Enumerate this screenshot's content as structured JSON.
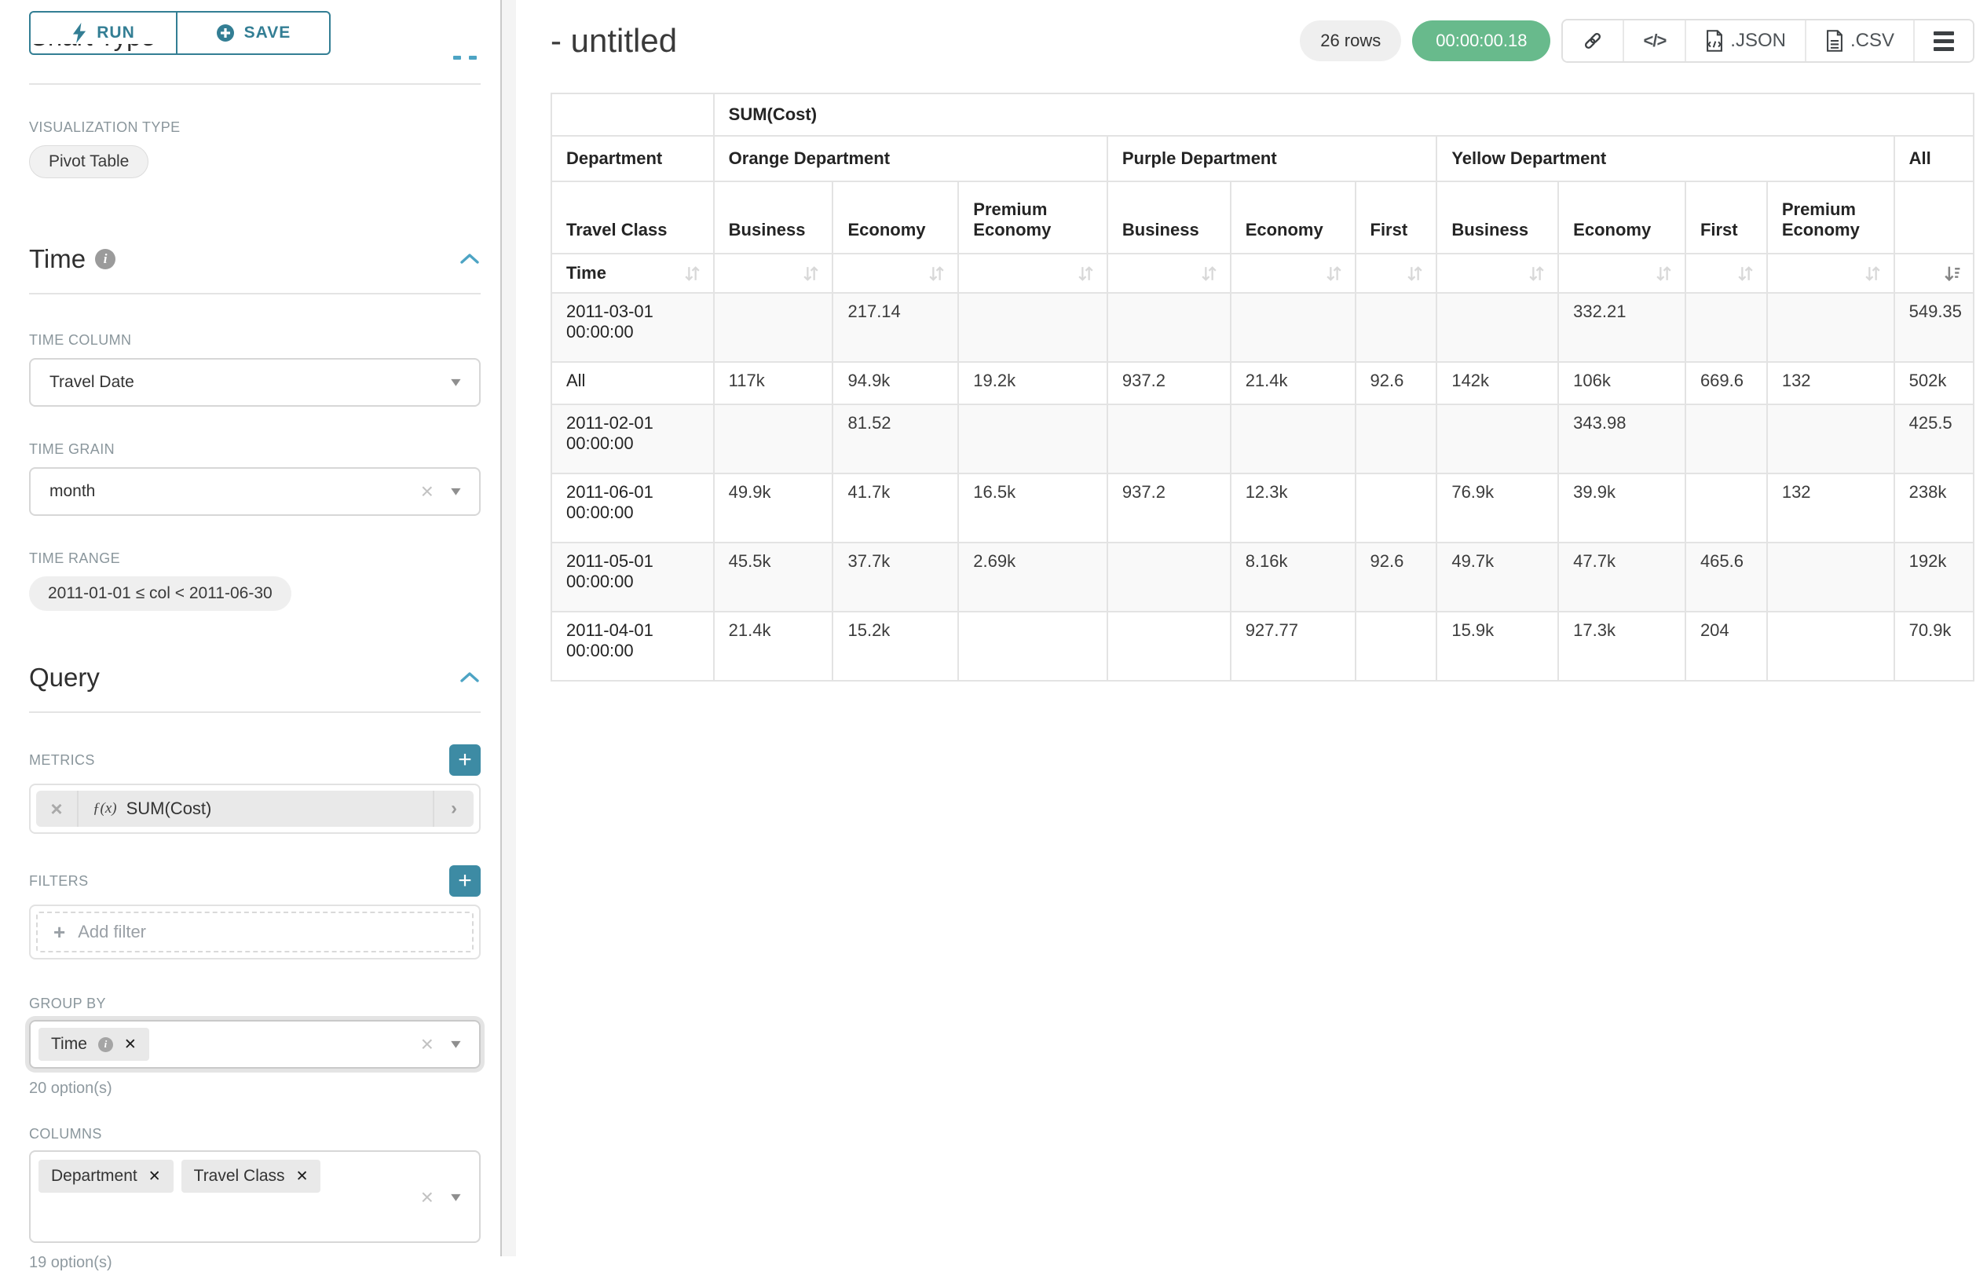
{
  "colors": {
    "accent_teal": "#337e94",
    "plus_button_teal": "#3d8ba4",
    "timer_green": "#68ba8c",
    "collapse_chevron_blue": "#4da4c4",
    "table_grid": "#e3e3e3",
    "row_stripe": "#f9f9f9"
  },
  "sidebar": {
    "run_button": "RUN",
    "save_button": "SAVE",
    "chart_type": {
      "title": "Chart Type",
      "viz_type_label": "VISUALIZATION TYPE",
      "viz_type_value": "Pivot Table"
    },
    "time_section": {
      "title": "Time",
      "time_column_label": "TIME COLUMN",
      "time_column_value": "Travel Date",
      "time_grain_label": "TIME GRAIN",
      "time_grain_value": "month",
      "time_range_label": "TIME RANGE",
      "time_range_value": "2011-01-01 ≤ col < 2011-06-30"
    },
    "query_section": {
      "title": "Query",
      "metrics_label": "METRICS",
      "metric_fx": "ƒ(x)",
      "metric_name": "SUM(Cost)",
      "filters_label": "FILTERS",
      "add_filter_label": "Add filter",
      "group_by_label": "GROUP BY",
      "group_by_tag": "Time",
      "group_by_hint": "20 option(s)",
      "columns_label": "COLUMNS",
      "columns_tags": [
        "Department",
        "Travel Class"
      ],
      "columns_hint": "19 option(s)"
    }
  },
  "header": {
    "title": "- untitled",
    "row_count": "26 rows",
    "timer": "00:00:00.18",
    "export_json_label": ".JSON",
    "export_csv_label": ".CSV"
  },
  "pivot": {
    "metric_header": "SUM(Cost)",
    "col_dim_label": "Department",
    "col_subdim_label": "Travel Class",
    "row_dim_label": "Time",
    "col_groups": [
      {
        "label": "Orange Department",
        "children": [
          "Business",
          "Economy",
          "Premium Economy"
        ]
      },
      {
        "label": "Purple Department",
        "children": [
          "Business",
          "Economy",
          "First"
        ]
      },
      {
        "label": "Yellow Department",
        "children": [
          "Business",
          "Economy",
          "First",
          "Premium Economy"
        ]
      },
      {
        "label": "All",
        "children": [
          ""
        ]
      }
    ],
    "sorted_desc_column": "All",
    "rows": [
      {
        "label": "2011-03-01 00:00:00",
        "values": [
          "",
          "217.14",
          "",
          "",
          "",
          "",
          "",
          "332.21",
          "",
          "",
          "549.35"
        ]
      },
      {
        "label": "All",
        "values": [
          "117k",
          "94.9k",
          "19.2k",
          "937.2",
          "21.4k",
          "92.6",
          "142k",
          "106k",
          "669.6",
          "132",
          "502k"
        ]
      },
      {
        "label": "2011-02-01 00:00:00",
        "values": [
          "",
          "81.52",
          "",
          "",
          "",
          "",
          "",
          "343.98",
          "",
          "",
          "425.5"
        ]
      },
      {
        "label": "2011-06-01 00:00:00",
        "values": [
          "49.9k",
          "41.7k",
          "16.5k",
          "937.2",
          "12.3k",
          "",
          "76.9k",
          "39.9k",
          "",
          "132",
          "238k"
        ]
      },
      {
        "label": "2011-05-01 00:00:00",
        "values": [
          "45.5k",
          "37.7k",
          "2.69k",
          "",
          "8.16k",
          "92.6",
          "49.7k",
          "47.7k",
          "465.6",
          "",
          "192k"
        ]
      },
      {
        "label": "2011-04-01 00:00:00",
        "values": [
          "21.4k",
          "15.2k",
          "",
          "",
          "927.77",
          "",
          "15.9k",
          "17.3k",
          "204",
          "",
          "70.9k"
        ]
      }
    ]
  }
}
